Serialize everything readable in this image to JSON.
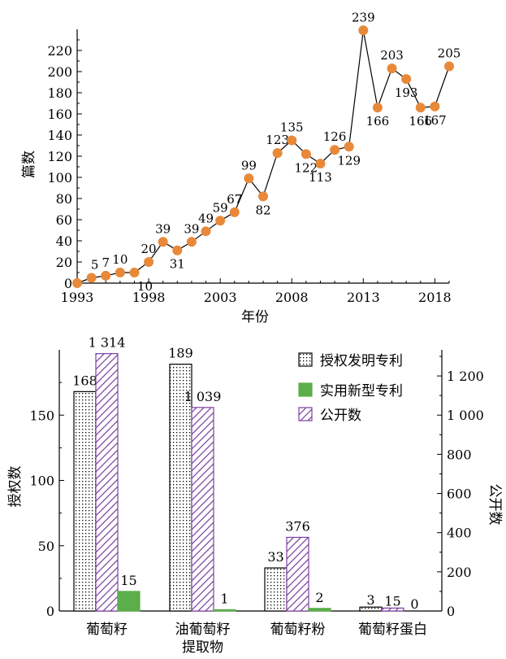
{
  "chart_data": [
    {
      "type": "line",
      "ylabel": "篇数",
      "xlabel": "年份",
      "x": [
        1993,
        1994,
        1995,
        1996,
        1997,
        1998,
        1999,
        2000,
        2001,
        2002,
        2003,
        2004,
        2005,
        2006,
        2007,
        2008,
        2009,
        2010,
        2011,
        2012,
        2013,
        2014,
        2015,
        2016,
        2017,
        2018,
        2019
      ],
      "values": [
        0,
        5,
        7,
        10,
        10,
        20,
        39,
        31,
        39,
        49,
        59,
        67,
        99,
        82,
        123,
        135,
        122,
        113,
        126,
        129,
        239,
        166,
        203,
        193,
        166,
        167,
        205
      ],
      "labels": [
        "",
        "5",
        "7",
        "10",
        "10",
        "20",
        "39",
        "31",
        "39",
        "49",
        "59",
        "67",
        "99",
        "82",
        "123",
        "135",
        "122",
        "113",
        "126",
        "129",
        "239",
        "166",
        "203",
        "193",
        "166",
        "167",
        "205"
      ],
      "ylim": [
        0,
        240
      ],
      "xlim": [
        1993,
        2019
      ],
      "yticks": [
        "0",
        "20",
        "40",
        "60",
        "80",
        "100",
        "120",
        "140",
        "160",
        "180",
        "200",
        "220"
      ],
      "xticks": [
        "1993",
        "1998",
        "2003",
        "2008",
        "2013",
        "2018"
      ],
      "marker_color": "#E8893A",
      "line_color": "#000000",
      "grid": false
    },
    {
      "type": "bar",
      "categories": [
        "葡萄籽",
        "油葡萄籽\n提取物",
        "葡萄籽粉",
        "葡萄籽蛋白"
      ],
      "ylabel": "授权数",
      "y2label": "公开数",
      "ylim": [
        0,
        200
      ],
      "y2lim": [
        0,
        1333.3
      ],
      "yticks": [
        "0",
        "50",
        "100",
        "150"
      ],
      "y2ticks": [
        "0",
        "200",
        "400",
        "600",
        "800",
        "1 000",
        "1 200"
      ],
      "legend_position": "top-right",
      "series": [
        {
          "name": "授权发明专利",
          "axis": "left",
          "values": [
            168,
            189,
            33,
            3
          ],
          "labels": [
            "168",
            "189",
            "33",
            "3"
          ],
          "pattern": "dots",
          "color": "#000000"
        },
        {
          "name": "实用新型专利",
          "axis": "left",
          "values": [
            15,
            1,
            2,
            0
          ],
          "labels": [
            "15",
            "1",
            "2",
            "0"
          ],
          "pattern": "solid",
          "color": "#5BAE4A"
        },
        {
          "name": "公开数",
          "axis": "right",
          "values": [
            1314,
            1039,
            376,
            15
          ],
          "labels": [
            "1 314",
            "1 039",
            "376",
            "15"
          ],
          "pattern": "hatch",
          "color": "#7B3FA0"
        }
      ]
    }
  ]
}
